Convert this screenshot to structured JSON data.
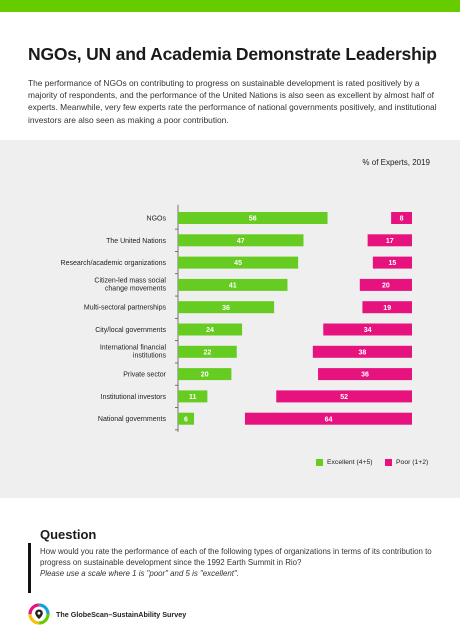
{
  "page": {
    "title": "NGOs, UN and Academia Demonstrate Leadership",
    "intro": "The performance of NGOs on contributing to progress on sustainable development is rated positively by a majority of respondents, and the performance of the United Nations is also seen as excellent by almost half of experts. Meanwhile, very few experts rate the performance of national governments positively, and institutional investors are also seen as making a poor contribution."
  },
  "colors": {
    "brand_green": "#66cc00",
    "excellent": "#66cc22",
    "poor": "#e6137f",
    "panel": "#efefef"
  },
  "chart_data": {
    "type": "bar",
    "orientation": "horizontal",
    "subtitle": "% of Experts, 2019",
    "categories": [
      "NGOs",
      "The United Nations",
      "Research/academic organizations",
      "Citizen-led mass social change movements",
      "Multi-sectoral partnerships",
      "City/local governments",
      "International financial institutions",
      "Private sector",
      "Institutional investors",
      "National governments"
    ],
    "series": [
      {
        "name": "Excellent (4+5)",
        "values": [
          56,
          47,
          45,
          41,
          36,
          24,
          22,
          20,
          11,
          6
        ]
      },
      {
        "name": "Poor (1+2)",
        "values": [
          8,
          17,
          15,
          20,
          19,
          34,
          38,
          36,
          52,
          64
        ]
      }
    ],
    "legend_position": "bottom-right",
    "grid": false
  },
  "question": {
    "title": "Question",
    "text": "How would you rate the performance of each of the following types of organizations in terms of its contribution to progress on sustainable development since the 1992 Earth Summit in Rio?",
    "note": "Please use a scale where 1 is \"poor\" and 5 is \"excellent\"."
  },
  "footer": {
    "text": "The GlobeScan–SustainAbility Survey",
    "logo_icon": "globe-location-logo-icon"
  }
}
